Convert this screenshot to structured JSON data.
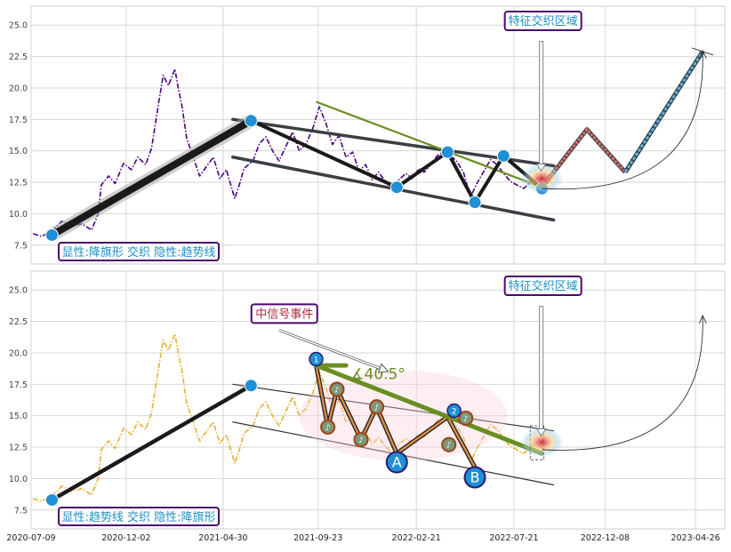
{
  "chart_data": [
    {
      "type": "line",
      "panel": "top",
      "xlim": [
        "2020-07-09",
        "2023-06-10"
      ],
      "ylim": [
        6,
        26.5
      ],
      "yticks": [
        "7.5",
        "10.0",
        "12.5",
        "15.0",
        "17.5",
        "20.0",
        "22.5",
        "25.0"
      ],
      "grid": true,
      "series": [
        {
          "kind": "price",
          "color": "#4b0082",
          "style": "dash-dot",
          "x": [
            "2020-07-12",
            "2020-07-25",
            "2020-08-10",
            "2020-08-25",
            "2020-09-10",
            "2020-09-25",
            "2020-10-10",
            "2020-10-20",
            "2020-10-25",
            "2020-11-05",
            "2020-11-15",
            "2020-11-28",
            "2020-12-10",
            "2020-12-20",
            "2021-01-01",
            "2021-01-10",
            "2021-01-20",
            "2021-01-28",
            "2021-02-05",
            "2021-02-15",
            "2021-02-20",
            "2021-02-26",
            "2021-03-05",
            "2021-03-15",
            "2021-03-25",
            "2021-04-05",
            "2021-04-15",
            "2021-04-25",
            "2021-05-05",
            "2021-05-18",
            "2021-05-25",
            "2021-06-01",
            "2021-06-15",
            "2021-06-25",
            "2021-07-05",
            "2021-07-15",
            "2021-07-25",
            "2021-08-05",
            "2021-08-15",
            "2021-08-25",
            "2021-09-05",
            "2021-09-15",
            "2021-09-25",
            "2021-10-05",
            "2021-10-15",
            "2021-10-25",
            "2021-11-05",
            "2021-11-15",
            "2021-11-25",
            "2021-12-05",
            "2021-12-15",
            "2021-12-25",
            "2022-01-05",
            "2022-01-15",
            "2022-01-25",
            "2022-02-05",
            "2022-02-15",
            "2022-02-25",
            "2022-03-05",
            "2022-03-15",
            "2022-03-25",
            "2022-04-05",
            "2022-04-15",
            "2022-04-25",
            "2022-05-05",
            "2022-05-15",
            "2022-05-25",
            "2022-06-05",
            "2022-06-15",
            "2022-06-25",
            "2022-07-05",
            "2022-07-15",
            "2022-07-25",
            "2022-08-05",
            "2022-08-15",
            "2022-08-25",
            "2022-09-05"
          ],
          "y": [
            8.4,
            8.2,
            8.6,
            9.4,
            9.0,
            9.2,
            8.7,
            10.0,
            12.3,
            13.0,
            12.4,
            14.0,
            13.5,
            14.5,
            13.9,
            15.2,
            18.5,
            21.0,
            20.2,
            21.5,
            20.0,
            18.5,
            16.0,
            14.5,
            13.0,
            13.8,
            14.5,
            12.8,
            13.5,
            11.2,
            12.3,
            13.6,
            14.2,
            15.6,
            16.1,
            15.0,
            14.2,
            15.4,
            16.5,
            15.0,
            15.6,
            16.8,
            18.5,
            17.2,
            15.5,
            16.2,
            14.5,
            14.9,
            13.4,
            13.9,
            12.7,
            13.3,
            12.5,
            12.1,
            12.7,
            13.2,
            12.8,
            13.6,
            13.3,
            13.9,
            14.6,
            15.0,
            14.6,
            14.1,
            13.2,
            11.3,
            12.4,
            13.4,
            14.3,
            13.9,
            13.2,
            12.6,
            12.3,
            12.0,
            12.5,
            12.8,
            12.3
          ]
        }
      ],
      "overlays": {
        "wave_points": [
          {
            "x": "2020-08-10",
            "y": 8.3
          },
          {
            "x": "2021-06-12",
            "y": 17.4
          },
          {
            "x": "2022-01-22",
            "y": 12.1
          },
          {
            "x": "2022-04-10",
            "y": 14.9
          },
          {
            "x": "2022-05-22",
            "y": 10.9
          },
          {
            "x": "2022-07-05",
            "y": 14.6
          },
          {
            "x": "2022-09-02",
            "y": 12.0
          }
        ],
        "channel_upper": {
          "start": {
            "x": "2021-05-15",
            "y": 17.5
          },
          "end": {
            "x": "2022-09-20",
            "y": 13.8
          }
        },
        "channel_lower": {
          "start": {
            "x": "2021-05-15",
            "y": 14.5
          },
          "end": {
            "x": "2022-09-20",
            "y": 9.5
          }
        },
        "green_line": {
          "start": {
            "x": "2021-09-20",
            "y": 18.9
          },
          "end": {
            "x": "2022-09-02",
            "y": 12.1
          }
        },
        "projection_red": [
          {
            "x": "2022-09-05",
            "y": 12.3
          },
          {
            "x": "2022-11-10",
            "y": 16.7
          },
          {
            "x": "2023-01-08",
            "y": 13.3
          }
        ],
        "projection_blue": [
          {
            "x": "2023-01-08",
            "y": 13.3
          },
          {
            "x": "2023-05-07",
            "y": 22.9
          }
        ],
        "curve_arrow": {
          "start": {
            "x": "2022-09-02",
            "y": 12.0
          },
          "end": {
            "x": "2023-05-07",
            "y": 22.9
          }
        },
        "zone_center": {
          "x": "2022-09-02",
          "y": 12.8
        },
        "down_arrow": {
          "from": {
            "x": "2022-09-01",
            "y": 23.7
          },
          "to": {
            "x": "2022-09-01",
            "y": 13.4
          }
        }
      },
      "annotations": {
        "zone_label": "特征交织区域",
        "corner_label": "显性:降旗形 交织 隐性:趋势线"
      }
    },
    {
      "type": "line",
      "panel": "bottom",
      "xlim": [
        "2020-07-09",
        "2023-06-10"
      ],
      "ylim": [
        6,
        26.5
      ],
      "yticks": [
        "7.5",
        "10.0",
        "12.5",
        "15.0",
        "17.5",
        "20.0",
        "22.5",
        "25.0"
      ],
      "xticks": [
        "2020-07-09",
        "2020-12-02",
        "2021-04-30",
        "2021-09-23",
        "2022-02-21",
        "2022-07-21",
        "2022-12-08",
        "2023-04-26"
      ],
      "grid": true,
      "series": [
        {
          "kind": "price",
          "color": "#e8b030",
          "style": "dash-dot",
          "x": [
            "2020-07-12",
            "2020-07-25",
            "2020-08-10",
            "2020-08-25",
            "2020-09-10",
            "2020-09-25",
            "2020-10-10",
            "2020-10-20",
            "2020-10-25",
            "2020-11-05",
            "2020-11-15",
            "2020-11-28",
            "2020-12-10",
            "2020-12-20",
            "2021-01-01",
            "2021-01-10",
            "2021-01-20",
            "2021-01-28",
            "2021-02-05",
            "2021-02-15",
            "2021-02-20",
            "2021-02-26",
            "2021-03-05",
            "2021-03-15",
            "2021-03-25",
            "2021-04-05",
            "2021-04-15",
            "2021-04-25",
            "2021-05-05",
            "2021-05-18",
            "2021-05-25",
            "2021-06-01",
            "2021-06-15",
            "2021-06-25",
            "2021-07-05",
            "2021-07-15",
            "2021-07-25",
            "2021-08-05",
            "2021-08-15",
            "2021-08-25",
            "2021-09-05",
            "2021-09-15",
            "2021-09-25",
            "2021-10-05",
            "2021-10-15",
            "2021-10-25",
            "2021-11-05",
            "2021-11-15",
            "2021-11-25",
            "2021-12-05",
            "2021-12-15",
            "2021-12-25",
            "2022-01-05",
            "2022-01-15",
            "2022-01-25",
            "2022-02-05",
            "2022-02-15",
            "2022-02-25",
            "2022-03-05",
            "2022-03-15",
            "2022-03-25",
            "2022-04-05",
            "2022-04-15",
            "2022-04-25",
            "2022-05-05",
            "2022-05-15",
            "2022-05-25",
            "2022-06-05",
            "2022-06-15",
            "2022-06-25",
            "2022-07-05",
            "2022-07-15",
            "2022-07-25",
            "2022-08-05",
            "2022-08-15",
            "2022-08-25",
            "2022-09-05"
          ],
          "y": [
            8.4,
            8.2,
            8.6,
            9.4,
            9.0,
            9.2,
            8.7,
            10.0,
            12.3,
            13.0,
            12.4,
            14.0,
            13.5,
            14.5,
            13.9,
            15.2,
            18.5,
            21.0,
            20.2,
            21.5,
            20.0,
            18.5,
            16.0,
            14.5,
            13.0,
            13.8,
            14.5,
            12.8,
            13.5,
            11.2,
            12.3,
            13.6,
            14.2,
            15.6,
            16.1,
            15.0,
            14.2,
            15.4,
            16.5,
            15.0,
            15.6,
            16.8,
            18.5,
            17.2,
            15.5,
            16.2,
            14.5,
            14.9,
            13.4,
            13.9,
            12.7,
            13.3,
            12.5,
            12.1,
            12.7,
            13.2,
            12.8,
            13.6,
            13.3,
            13.9,
            14.6,
            15.0,
            14.6,
            14.1,
            13.2,
            11.3,
            12.4,
            13.4,
            14.3,
            13.9,
            13.2,
            12.6,
            12.3,
            12.0,
            12.5,
            12.8,
            12.3
          ]
        }
      ],
      "overlays": {
        "trend_points": [
          {
            "x": "2020-08-10",
            "y": 8.3
          },
          {
            "x": "2021-06-12",
            "y": 17.4
          }
        ],
        "channel_upper": {
          "start": {
            "x": "2021-05-15",
            "y": 17.5
          },
          "end": {
            "x": "2022-09-20",
            "y": 13.8
          }
        },
        "channel_lower": {
          "start": {
            "x": "2021-05-15",
            "y": 14.5
          },
          "end": {
            "x": "2022-09-20",
            "y": 9.5
          }
        },
        "green_line": {
          "start": {
            "x": "2021-09-20",
            "y": 19.0
          },
          "end": {
            "x": "2022-09-02",
            "y": 12.0
          }
        },
        "flag_pole": {
          "start": {
            "x": "2021-09-20",
            "y": 19.0
          },
          "end": {
            "x": "2021-11-05",
            "y": 19.0
          }
        },
        "zigzag": [
          {
            "x": "2021-09-20",
            "y": 19.0
          },
          {
            "x": "2021-10-08",
            "y": 14.1
          },
          {
            "x": "2021-10-22",
            "y": 17.1
          },
          {
            "x": "2021-11-28",
            "y": 13.1
          },
          {
            "x": "2021-12-22",
            "y": 15.7
          },
          {
            "x": "2022-01-22",
            "y": 12.0
          },
          {
            "x": "2022-04-10",
            "y": 14.9
          },
          {
            "x": "2022-05-22",
            "y": 10.9
          }
        ],
        "music_markers": [
          {
            "x": "2021-10-08",
            "y": 14.1
          },
          {
            "x": "2021-10-22",
            "y": 17.1
          },
          {
            "x": "2021-11-28",
            "y": 13.1
          },
          {
            "x": "2021-12-22",
            "y": 15.7
          },
          {
            "x": "2022-04-12",
            "y": 12.7
          },
          {
            "x": "2022-05-08",
            "y": 14.8
          }
        ],
        "event_points": [
          {
            "id": "1",
            "x": "2021-09-20",
            "y": 19.5
          },
          {
            "id": "2",
            "x": "2022-04-20",
            "y": 15.4
          }
        ],
        "big_points": [
          {
            "id": "A",
            "x": "2022-01-22",
            "y": 11.3
          },
          {
            "id": "B",
            "x": "2022-05-22",
            "y": 10.1
          }
        ],
        "ellipse": {
          "cx": "2022-02-01",
          "cy": 15.0,
          "rx_days": 160,
          "ry": 3.6
        },
        "dashed_box": {
          "x0": "2022-08-15",
          "x1": "2022-09-05",
          "y0": 11.5,
          "y1": 14.2
        },
        "zone_center": {
          "x": "2022-09-02",
          "y": 12.9
        },
        "curve_arrow": {
          "start": {
            "x": "2022-09-02",
            "y": 12.3
          },
          "end": {
            "x": "2023-05-07",
            "y": 22.9
          }
        },
        "signal_arrow": {
          "from": {
            "x": "2021-07-25",
            "y": 21.8
          },
          "to": {
            "x": "2022-01-05",
            "y": 18.6
          }
        },
        "down_arrow": {
          "from": {
            "x": "2022-09-01",
            "y": 23.7
          },
          "to": {
            "x": "2022-09-01",
            "y": 13.4
          }
        }
      },
      "annotations": {
        "zone_label": "特征交织区域",
        "signal_label": "中信号事件",
        "angle_label": "∡40.5°",
        "corner_label": "显性:趋势线 交织 隐性:降旗形"
      }
    }
  ]
}
